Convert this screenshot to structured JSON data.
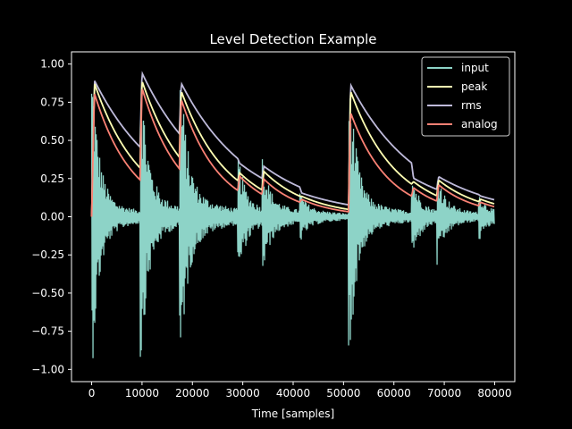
{
  "chart_data": {
    "type": "line",
    "title": "Level Detection Example",
    "xlabel": "Time [samples]",
    "ylabel": "",
    "xlim": [
      -4000,
      84000
    ],
    "ylim": [
      -1.08,
      1.08
    ],
    "xticks": [
      0,
      10000,
      20000,
      30000,
      40000,
      50000,
      60000,
      70000,
      80000
    ],
    "yticks": [
      -1.0,
      -0.75,
      -0.5,
      -0.25,
      0.0,
      0.25,
      0.5,
      0.75,
      1.0
    ],
    "xtick_labels": [
      "0",
      "10000",
      "20000",
      "30000",
      "40000",
      "50000",
      "60000",
      "70000",
      "80000"
    ],
    "ytick_labels": [
      "−1.00",
      "−0.75",
      "−0.50",
      "−0.25",
      "0.00",
      "0.25",
      "0.50",
      "0.75",
      "1.00"
    ],
    "grid": false,
    "legend_position": "top-right",
    "x_end": 80000,
    "onsets": [
      {
        "x": 0,
        "amp": 0.98
      },
      {
        "x": 9600,
        "amp": 0.98
      },
      {
        "x": 17400,
        "amp": 0.98
      },
      {
        "x": 29000,
        "amp": 0.35
      },
      {
        "x": 33800,
        "amp": 0.33
      },
      {
        "x": 41300,
        "amp": 0.12
      },
      {
        "x": 51000,
        "amp": 0.98
      },
      {
        "x": 63500,
        "amp": 0.25
      },
      {
        "x": 68500,
        "amp": 0.27
      },
      {
        "x": 76800,
        "amp": 0.13
      }
    ],
    "series": [
      {
        "name": "input",
        "color": "#8dd3c7"
      },
      {
        "name": "peak",
        "color": "#ffffb3"
      },
      {
        "name": "rms",
        "color": "#bebada"
      },
      {
        "name": "analog",
        "color": "#fa8174"
      }
    ],
    "envelope_peaks": [
      {
        "x": 0,
        "peak": 0.93,
        "rms": 0.93,
        "analog": 0.87
      },
      {
        "x": 9600,
        "peak": 0.93,
        "rms": 0.97,
        "analog": 0.89
      },
      {
        "x": 17400,
        "peak": 0.86,
        "rms": 0.9,
        "analog": 0.81
      },
      {
        "x": 29000,
        "peak": 0.3,
        "rms": 0.36,
        "analog": 0.28
      },
      {
        "x": 33800,
        "peak": 0.31,
        "rms": 0.34,
        "analog": 0.26
      },
      {
        "x": 41300,
        "peak": 0.14,
        "rms": 0.16,
        "analog": 0.12
      },
      {
        "x": 51000,
        "peak": 0.86,
        "rms": 0.89,
        "analog": 0.72
      },
      {
        "x": 63500,
        "peak": 0.24,
        "rms": 0.26,
        "analog": 0.2
      },
      {
        "x": 68500,
        "peak": 0.25,
        "rms": 0.27,
        "analog": 0.22
      },
      {
        "x": 76800,
        "peak": 0.12,
        "rms": 0.14,
        "analog": 0.1
      }
    ]
  }
}
